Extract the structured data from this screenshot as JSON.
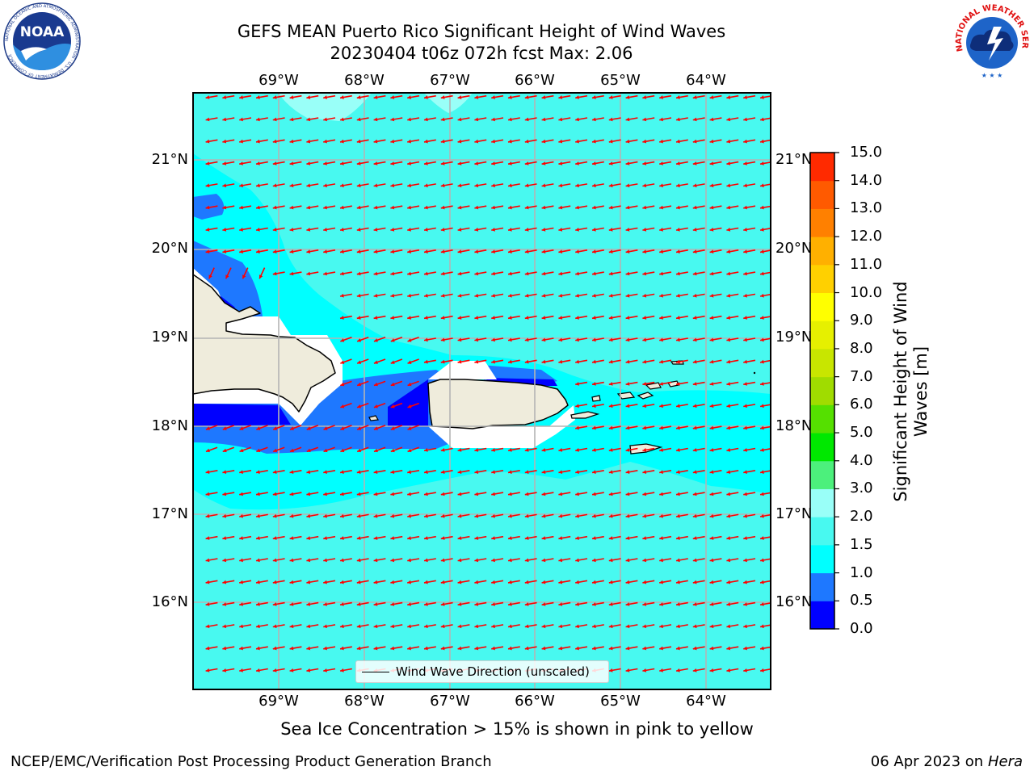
{
  "header": {
    "title_line1": "GEFS MEAN Puerto Rico Significant Height of Wind Waves",
    "title_line2": "20230404 t06z 072h fcst   Max: 2.06"
  },
  "logos": {
    "left": {
      "name": "noaa-logo",
      "text": "NOAA",
      "ring_text": "NATIONAL OCEANIC AND ATMOSPHERIC ADMINISTRATION · U.S. DEPARTMENT OF COMMERCE"
    },
    "right": {
      "name": "nws-logo",
      "ring_text": "NATIONAL WEATHER SERVICE"
    }
  },
  "map": {
    "lon_ticks": [
      "69°W",
      "68°W",
      "67°W",
      "66°W",
      "65°W",
      "64°W"
    ],
    "lat_ticks": [
      "21°N",
      "20°N",
      "19°N",
      "18°N",
      "17°N",
      "16°N"
    ],
    "legend_label": "Wind Wave Direction (unscaled)",
    "arrow_color": "#ff0000",
    "land_color": "#efecdc"
  },
  "colorbar": {
    "label": "Significant Height of Wind Waves [m]",
    "tick_labels": [
      "0.0",
      "0.5",
      "1.0",
      "1.5",
      "2.0",
      "3.0",
      "4.0",
      "5.0",
      "6.0",
      "7.0",
      "8.0",
      "9.0",
      "10.0",
      "11.0",
      "12.0",
      "13.0",
      "14.0",
      "15.0"
    ],
    "colors": [
      "#0000ff",
      "#1e78ff",
      "#00ffff",
      "#48f9f0",
      "#99fff8",
      "#4cf07c",
      "#00e800",
      "#55e000",
      "#a0dc00",
      "#c8e600",
      "#e6f000",
      "#ffff00",
      "#ffd000",
      "#ffb000",
      "#ff8000",
      "#ff5a00",
      "#ff2a00"
    ]
  },
  "note": "Sea Ice Concentration > 15% is shown in pink to yellow",
  "footer": {
    "left": "NCEP/EMC/Verification Post Processing Product Generation Branch",
    "right_date": "06 Apr 2023 on ",
    "right_host": "Hera"
  }
}
